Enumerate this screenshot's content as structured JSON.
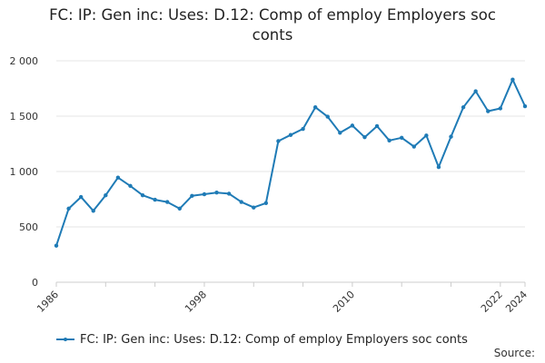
{
  "title": "FC: IP: Gen inc: Uses: D.12: Comp of employ Employers soc conts",
  "source_label": "Source:",
  "colors": {
    "series": "#1f7bb6",
    "grid": "#e6e6e6",
    "axis": "#cccccc"
  },
  "chart_data": {
    "type": "line",
    "title": "FC: IP: Gen inc: Uses: D.12: Comp of employ Employers soc conts",
    "xlabel": "",
    "ylabel": "",
    "xlim": [
      1986,
      2024
    ],
    "ylim": [
      0,
      2000
    ],
    "y_ticks": [
      0,
      500,
      1000,
      1500,
      2000
    ],
    "y_tick_labels": [
      "0",
      "500",
      "1 000",
      "1 500",
      "2 000"
    ],
    "x_ticks": [
      1986,
      1998,
      2010,
      2022,
      2024
    ],
    "x_tick_labels": [
      "1986",
      "1998",
      "2010",
      "2022",
      "2024"
    ],
    "grid": true,
    "legend_position": "bottom-left",
    "series": [
      {
        "name": "FC: IP: Gen inc: Uses: D.12: Comp of employ Employers soc conts",
        "x": [
          1986,
          1987,
          1988,
          1989,
          1990,
          1991,
          1992,
          1993,
          1994,
          1995,
          1996,
          1997,
          1998,
          1999,
          2000,
          2001,
          2002,
          2003,
          2004,
          2005,
          2006,
          2007,
          2008,
          2009,
          2010,
          2011,
          2012,
          2013,
          2014,
          2015,
          2016,
          2017,
          2018,
          2019,
          2020,
          2021,
          2022,
          2023,
          2024
        ],
        "values": [
          330,
          665,
          770,
          645,
          785,
          945,
          870,
          785,
          745,
          725,
          665,
          780,
          795,
          810,
          800,
          725,
          675,
          715,
          1275,
          1330,
          1385,
          1580,
          1495,
          1350,
          1415,
          1310,
          1410,
          1280,
          1305,
          1225,
          1325,
          1040,
          1315,
          1580,
          1725,
          1545,
          1570,
          1830,
          1590
        ]
      }
    ]
  }
}
